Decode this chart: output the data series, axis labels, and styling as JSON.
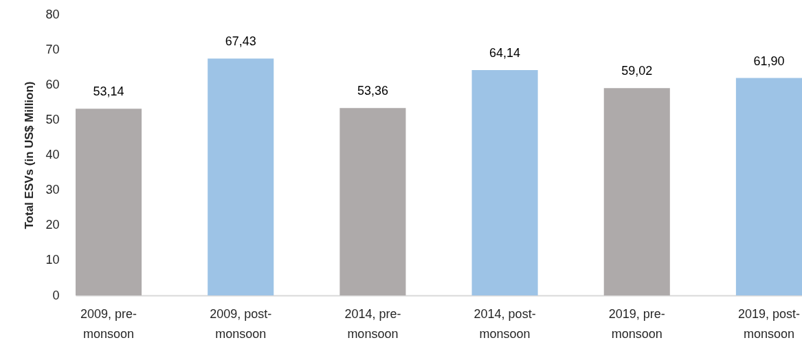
{
  "chart_data": {
    "type": "bar",
    "ylabel": "Total ESVs (in US$ Million)",
    "categories": [
      "2009, pre-monsoon",
      "2009, post-monsoon",
      "2014, pre-monsoon",
      "2014, post-monsoon",
      "2019, pre-monsoon",
      "2019, post-monsoon"
    ],
    "values": [
      53.14,
      67.43,
      53.36,
      64.14,
      59.02,
      61.9
    ],
    "colors": [
      "#aeaaaa",
      "#9dc3e6",
      "#aeaaaa",
      "#9dc3e6",
      "#aeaaaa",
      "#9dc3e6"
    ],
    "value_labels": [
      "53,14",
      "67,43",
      "53,36",
      "64,14",
      "59,02",
      "61,90"
    ],
    "ylim": [
      0,
      80
    ],
    "yticks": [
      0,
      10,
      20,
      30,
      40,
      50,
      60,
      70,
      80
    ]
  }
}
